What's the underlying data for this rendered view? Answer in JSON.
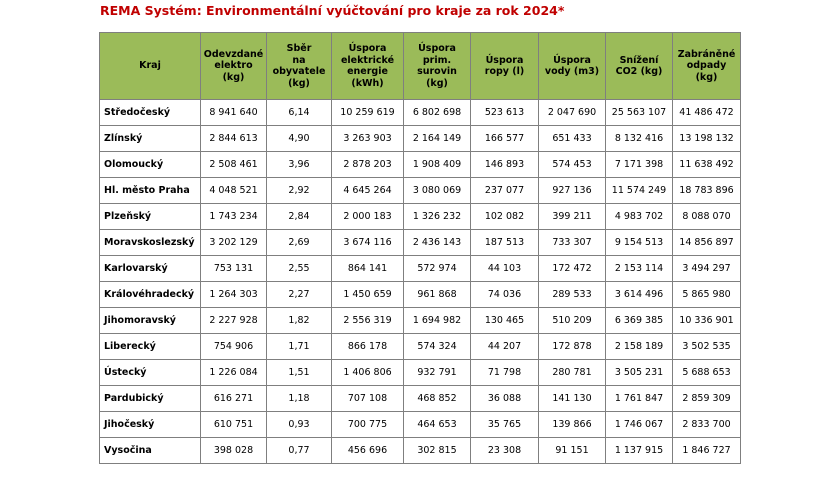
{
  "title": "REMA Systém: Environmentální vyúčtování pro kraje za rok 2024*",
  "table": {
    "headers": [
      [
        "Kraj"
      ],
      [
        "Odevzdané",
        "elektro",
        "(kg)"
      ],
      [
        "Sběr",
        "na",
        "obyvatele",
        "(kg)"
      ],
      [
        "Úspora",
        "elektrické",
        "energie",
        "(kWh)"
      ],
      [
        "Úspora",
        "prim.",
        "surovin",
        "(kg)"
      ],
      [
        "Úspora",
        "ropy (l)"
      ],
      [
        "Úspora",
        "vody (m3)"
      ],
      [
        "Snížení",
        "CO2 (kg)"
      ],
      [
        "Zabráněné",
        "odpady",
        "(kg)"
      ]
    ],
    "rows": [
      [
        "Středočeský",
        "8 941 640",
        "6,14",
        "10 259 619",
        "6 802 698",
        "523 613",
        "2 047 690",
        "25 563 107",
        "41 486 472"
      ],
      [
        "Zlínský",
        "2 844 613",
        "4,90",
        "3 263 903",
        "2 164 149",
        "166 577",
        "651 433",
        "8 132 416",
        "13 198 132"
      ],
      [
        "Olomoucký",
        "2 508 461",
        "3,96",
        "2 878 203",
        "1 908 409",
        "146 893",
        "574 453",
        "7 171 398",
        "11 638 492"
      ],
      [
        "Hl. město Praha",
        "4 048 521",
        "2,92",
        "4 645 264",
        "3 080 069",
        "237 077",
        "927 136",
        "11 574 249",
        "18 783 896"
      ],
      [
        "Plzeňský",
        "1 743 234",
        "2,84",
        "2 000 183",
        "1 326 232",
        "102 082",
        "399 211",
        "4 983 702",
        "8 088 070"
      ],
      [
        "Moravskoslezský",
        "3 202 129",
        "2,69",
        "3 674 116",
        "2 436 143",
        "187 513",
        "733 307",
        "9 154 513",
        "14 856 897"
      ],
      [
        "Karlovarský",
        "753 131",
        "2,55",
        "864 141",
        "572 974",
        "44 103",
        "172 472",
        "2 153 114",
        "3 494 297"
      ],
      [
        "Královéhradecký",
        "1 264 303",
        "2,27",
        "1 450 659",
        "961 868",
        "74 036",
        "289 533",
        "3 614 496",
        "5 865 980"
      ],
      [
        "Jihomoravský",
        "2 227 928",
        "1,82",
        "2 556 319",
        "1 694 982",
        "130 465",
        "510 209",
        "6 369 385",
        "10 336 901"
      ],
      [
        "Liberecký",
        "754 906",
        "1,71",
        "866 178",
        "574 324",
        "44 207",
        "172 878",
        "2 158 189",
        "3 502 535"
      ],
      [
        "Ústecký",
        "1 226 084",
        "1,51",
        "1 406 806",
        "932 791",
        "71 798",
        "280 781",
        "3 505 231",
        "5 688 653"
      ],
      [
        "Pardubický",
        "616 271",
        "1,18",
        "707 108",
        "468 852",
        "36 088",
        "141 130",
        "1 761 847",
        "2 859 309"
      ],
      [
        "Jihočeský",
        "610 751",
        "0,93",
        "700 775",
        "464 653",
        "35 765",
        "139 866",
        "1 746 067",
        "2 833 700"
      ],
      [
        "Vysočina",
        "398 028",
        "0,77",
        "456 696",
        "302 815",
        "23 308",
        "91 151",
        "1 137 915",
        "1 846 727"
      ]
    ]
  },
  "colors": {
    "header_bg": "#9bbb59",
    "title_color": "#c00000",
    "border": "#7f7f7f"
  }
}
